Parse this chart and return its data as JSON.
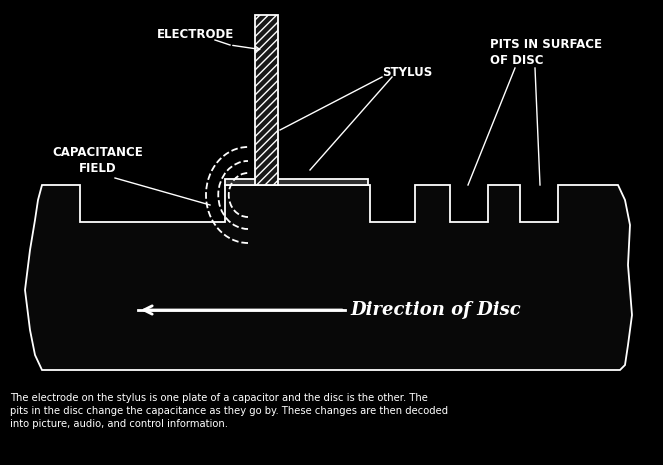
{
  "bg_color": "#000000",
  "line_color": "#ffffff",
  "text_color": "#ffffff",
  "caption_text": "The electrode on the stylus is one plate of a capacitor and the disc is the other. The\npits in the disc change the capacitance as they go by. These changes are then decoded\ninto picture, audio, and control information.",
  "label_electrode": "ELECTRODE",
  "label_stylus": "STYLUS",
  "label_pits": "PITS IN SURFACE\nOF DISC",
  "label_cap_field": "CAPACITANCE\nFIELD",
  "label_direction": "Direction of Disc",
  "fig_width": 6.63,
  "fig_height": 4.65,
  "dpi": 100
}
